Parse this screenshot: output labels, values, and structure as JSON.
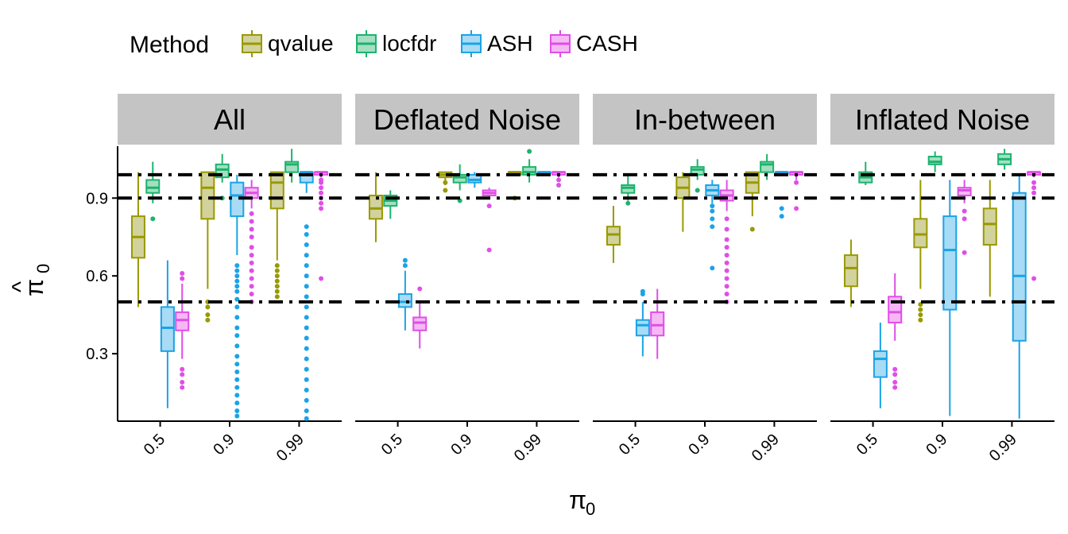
{
  "chart_data": {
    "type": "boxplot",
    "legend": {
      "title": "Method",
      "placement": "top-left"
    },
    "x_title": "π",
    "x_title_sub": "0",
    "y_title": "π",
    "y_title_hat": "^",
    "y_title_sub": "0",
    "ylim": [
      0.04,
      1.1
    ],
    "y_ticks": [
      0.3,
      0.6,
      0.9
    ],
    "y_tick_labels": [
      "0.3",
      "0.6",
      "0.9"
    ],
    "reference_lines": [
      0.5,
      0.9,
      0.99
    ],
    "categories": [
      "0.5",
      "0.9",
      "0.99"
    ],
    "series": [
      {
        "name": "qvalue",
        "color": "#999900",
        "fill": "#d2d29c"
      },
      {
        "name": "locfdr",
        "color": "#1db36e",
        "fill": "#a4dfc2"
      },
      {
        "name": "ASH",
        "color": "#1ba3e6",
        "fill": "#a8dbf5"
      },
      {
        "name": "CASH",
        "color": "#e04ee8",
        "fill": "#f5b8f5"
      }
    ],
    "panels": [
      {
        "title": "All",
        "boxes": [
          [
            {
              "min": 0.48,
              "q1": 0.67,
              "median": 0.75,
              "q3": 0.83,
              "max": 1.0,
              "outliers": []
            },
            {
              "min": 0.88,
              "q1": 0.92,
              "median": 0.94,
              "q3": 0.97,
              "max": 1.04,
              "outliers": [
                0.82
              ]
            },
            {
              "min": 0.09,
              "q1": 0.31,
              "median": 0.4,
              "q3": 0.48,
              "max": 0.66,
              "outliers": []
            },
            {
              "min": 0.28,
              "q1": 0.39,
              "median": 0.43,
              "q3": 0.46,
              "max": 0.57,
              "outliers": [
                0.17,
                0.19,
                0.22,
                0.24,
                0.59,
                0.61
              ]
            }
          ],
          [
            {
              "min": 0.55,
              "q1": 0.82,
              "median": 0.94,
              "q3": 1.0,
              "max": 1.0,
              "outliers": [
                0.43,
                0.45,
                0.48,
                0.5
              ]
            },
            {
              "min": 0.96,
              "q1": 0.98,
              "median": 1.01,
              "q3": 1.03,
              "max": 1.07,
              "outliers": [
                0.9
              ]
            },
            {
              "min": 0.68,
              "q1": 0.83,
              "median": 0.91,
              "q3": 0.96,
              "max": 0.99,
              "outliers": [
                0.06,
                0.08,
                0.11,
                0.14,
                0.17,
                0.2,
                0.23,
                0.26,
                0.29,
                0.33,
                0.37,
                0.4,
                0.44,
                0.48,
                0.51,
                0.54,
                0.56,
                0.58,
                0.6,
                0.62,
                0.64
              ]
            },
            {
              "min": 0.86,
              "q1": 0.9,
              "median": 0.92,
              "q3": 0.94,
              "max": 0.97,
              "outliers": [
                0.5,
                0.53,
                0.56,
                0.59,
                0.62,
                0.65,
                0.68,
                0.71,
                0.75,
                0.78,
                0.81,
                0.84
              ]
            }
          ],
          [
            {
              "min": 0.66,
              "q1": 0.86,
              "median": 0.96,
              "q3": 1.0,
              "max": 1.0,
              "outliers": [
                0.52,
                0.54,
                0.56,
                0.58,
                0.6,
                0.62,
                0.64
              ]
            },
            {
              "min": 0.96,
              "q1": 1.0,
              "median": 1.03,
              "q3": 1.04,
              "max": 1.09,
              "outliers": []
            },
            {
              "min": 0.92,
              "q1": 0.96,
              "median": 1.0,
              "q3": 1.0,
              "max": 1.0,
              "outliers": [
                0.05,
                0.08,
                0.12,
                0.16,
                0.2,
                0.24,
                0.28,
                0.32,
                0.36,
                0.4,
                0.44,
                0.48,
                0.52,
                0.56,
                0.6,
                0.64,
                0.68,
                0.72,
                0.76,
                0.79
              ]
            },
            {
              "min": 0.98,
              "q1": 0.99,
              "median": 1.0,
              "q3": 1.0,
              "max": 1.0,
              "outliers": [
                0.59,
                0.86,
                0.88,
                0.9,
                0.92,
                0.94,
                0.96,
                0.97
              ]
            }
          ]
        ]
      },
      {
        "title": "Deflated Noise",
        "boxes": [
          [
            {
              "min": 0.73,
              "q1": 0.82,
              "median": 0.86,
              "q3": 0.91,
              "max": 1.0,
              "outliers": []
            },
            {
              "min": 0.82,
              "q1": 0.87,
              "median": 0.89,
              "q3": 0.91,
              "max": 0.93,
              "outliers": []
            },
            {
              "min": 0.39,
              "q1": 0.48,
              "median": 0.5,
              "q3": 0.53,
              "max": 0.62,
              "outliers": [
                0.64,
                0.66
              ]
            },
            {
              "min": 0.32,
              "q1": 0.39,
              "median": 0.42,
              "q3": 0.44,
              "max": 0.5,
              "outliers": [
                0.55
              ]
            }
          ],
          [
            {
              "min": 0.95,
              "q1": 0.98,
              "median": 0.99,
              "q3": 1.0,
              "max": 1.0,
              "outliers": [
                0.93,
                0.96
              ]
            },
            {
              "min": 0.93,
              "q1": 0.96,
              "median": 0.98,
              "q3": 0.99,
              "max": 1.03,
              "outliers": [
                0.89
              ]
            },
            {
              "min": 0.94,
              "q1": 0.96,
              "median": 0.97,
              "q3": 0.99,
              "max": 1.0,
              "outliers": []
            },
            {
              "min": 0.9,
              "q1": 0.91,
              "median": 0.92,
              "q3": 0.93,
              "max": 0.94,
              "outliers": [
                0.7,
                0.87
              ]
            }
          ],
          [
            {
              "min": 0.99,
              "q1": 0.99,
              "median": 1.0,
              "q3": 1.0,
              "max": 1.0,
              "outliers": [
                0.9
              ]
            },
            {
              "min": 0.96,
              "q1": 0.99,
              "median": 1.0,
              "q3": 1.02,
              "max": 1.05,
              "outliers": [
                1.08
              ]
            },
            {
              "min": 1.0,
              "q1": 1.0,
              "median": 1.0,
              "q3": 1.0,
              "max": 1.0,
              "outliers": []
            },
            {
              "min": 0.98,
              "q1": 0.99,
              "median": 1.0,
              "q3": 1.0,
              "max": 1.0,
              "outliers": [
                0.95,
                0.97
              ]
            }
          ]
        ]
      },
      {
        "title": "In-between",
        "boxes": [
          [
            {
              "min": 0.65,
              "q1": 0.72,
              "median": 0.76,
              "q3": 0.79,
              "max": 0.87,
              "outliers": []
            },
            {
              "min": 0.89,
              "q1": 0.92,
              "median": 0.94,
              "q3": 0.95,
              "max": 0.99,
              "outliers": [
                0.88
              ]
            },
            {
              "min": 0.29,
              "q1": 0.37,
              "median": 0.41,
              "q3": 0.43,
              "max": 0.5,
              "outliers": [
                0.53,
                0.54
              ]
            },
            {
              "min": 0.28,
              "q1": 0.37,
              "median": 0.41,
              "q3": 0.46,
              "max": 0.55,
              "outliers": []
            }
          ],
          [
            {
              "min": 0.77,
              "q1": 0.9,
              "median": 0.94,
              "q3": 0.98,
              "max": 1.0,
              "outliers": []
            },
            {
              "min": 0.97,
              "q1": 0.99,
              "median": 1.01,
              "q3": 1.02,
              "max": 1.05,
              "outliers": [
                0.93
              ]
            },
            {
              "min": 0.88,
              "q1": 0.91,
              "median": 0.93,
              "q3": 0.95,
              "max": 0.97,
              "outliers": [
                0.63,
                0.79,
                0.82,
                0.85,
                0.87
              ]
            },
            {
              "min": 0.85,
              "q1": 0.89,
              "median": 0.91,
              "q3": 0.93,
              "max": 0.97,
              "outliers": [
                0.5,
                0.53,
                0.56,
                0.59,
                0.62,
                0.65,
                0.68,
                0.71,
                0.74,
                0.78,
                0.82
              ]
            }
          ],
          [
            {
              "min": 0.83,
              "q1": 0.92,
              "median": 0.96,
              "q3": 1.0,
              "max": 1.0,
              "outliers": [
                0.78
              ]
            },
            {
              "min": 0.97,
              "q1": 1.0,
              "median": 1.03,
              "q3": 1.04,
              "max": 1.07,
              "outliers": []
            },
            {
              "min": 0.99,
              "q1": 1.0,
              "median": 1.0,
              "q3": 1.0,
              "max": 1.0,
              "outliers": [
                0.83,
                0.86
              ]
            },
            {
              "min": 0.97,
              "q1": 0.99,
              "median": 1.0,
              "q3": 1.0,
              "max": 1.0,
              "outliers": [
                0.86,
                0.96
              ]
            }
          ]
        ]
      },
      {
        "title": "Inflated Noise",
        "boxes": [
          [
            {
              "min": 0.48,
              "q1": 0.56,
              "median": 0.63,
              "q3": 0.68,
              "max": 0.74,
              "outliers": []
            },
            {
              "min": 0.95,
              "q1": 0.96,
              "median": 0.98,
              "q3": 1.0,
              "max": 1.04,
              "outliers": []
            },
            {
              "min": 0.09,
              "q1": 0.21,
              "median": 0.28,
              "q3": 0.31,
              "max": 0.42,
              "outliers": []
            },
            {
              "min": 0.35,
              "q1": 0.42,
              "median": 0.46,
              "q3": 0.52,
              "max": 0.61,
              "outliers": [
                0.17,
                0.19,
                0.22,
                0.24
              ]
            }
          ],
          [
            {
              "min": 0.55,
              "q1": 0.71,
              "median": 0.76,
              "q3": 0.82,
              "max": 0.97,
              "outliers": [
                0.43,
                0.45,
                0.47,
                0.49
              ]
            },
            {
              "min": 1.0,
              "q1": 1.03,
              "median": 1.04,
              "q3": 1.06,
              "max": 1.08,
              "outliers": []
            },
            {
              "min": 0.06,
              "q1": 0.47,
              "median": 0.7,
              "q3": 0.83,
              "max": 0.97,
              "outliers": []
            },
            {
              "min": 0.88,
              "q1": 0.91,
              "median": 0.93,
              "q3": 0.94,
              "max": 0.97,
              "outliers": [
                0.69,
                0.82,
                0.85
              ]
            }
          ],
          [
            {
              "min": 0.52,
              "q1": 0.72,
              "median": 0.8,
              "q3": 0.86,
              "max": 0.97,
              "outliers": []
            },
            {
              "min": 1.01,
              "q1": 1.03,
              "median": 1.05,
              "q3": 1.07,
              "max": 1.09,
              "outliers": []
            },
            {
              "min": 0.05,
              "q1": 0.35,
              "median": 0.6,
              "q3": 0.92,
              "max": 0.99,
              "outliers": []
            },
            {
              "min": 0.98,
              "q1": 0.99,
              "median": 1.0,
              "q3": 1.0,
              "max": 1.0,
              "outliers": [
                0.59,
                0.92,
                0.94,
                0.96
              ]
            }
          ]
        ]
      }
    ]
  }
}
